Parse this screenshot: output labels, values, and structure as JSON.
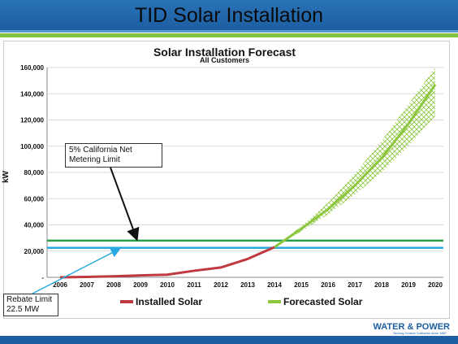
{
  "slide": {
    "title": "TID Solar Installation",
    "logo_text": "WATER & POWER",
    "logo_tagline": "Serving Central California since 1887"
  },
  "colors": {
    "header_bg": "#1c5ea1",
    "accent_green": "#7ec240",
    "installed": "#c0393f",
    "forecast": "#8dc63f",
    "net_metering_line": "#2aa04a",
    "rebate_line": "#29a9e0"
  },
  "chart_data": {
    "type": "line",
    "title": "Solar Installation Forecast",
    "subtitle": "All Customers",
    "xlabel": "",
    "ylabel": "kW",
    "x": [
      2006,
      2007,
      2008,
      2009,
      2010,
      2011,
      2012,
      2013,
      2014,
      2015,
      2016,
      2017,
      2018,
      2019,
      2020
    ],
    "ylim": [
      0,
      160000
    ],
    "yticks": [
      {
        "value": 0,
        "label": "-"
      },
      {
        "value": 20000,
        "label": "20,000"
      },
      {
        "value": 40000,
        "label": "40,000"
      },
      {
        "value": 60000,
        "label": "60,000"
      },
      {
        "value": 80000,
        "label": "80,000"
      },
      {
        "value": 100000,
        "label": "100,000"
      },
      {
        "value": 120000,
        "label": "120,000"
      },
      {
        "value": 140000,
        "label": "140,000"
      },
      {
        "value": 160000,
        "label": "160,000"
      }
    ],
    "grid": true,
    "series": [
      {
        "name": "Installed Solar",
        "x": [
          2006,
          2007,
          2008,
          2009,
          2010,
          2011,
          2012,
          2013,
          2014
        ],
        "values": [
          0,
          300,
          800,
          1500,
          2000,
          5000,
          7500,
          14000,
          23000
        ]
      },
      {
        "name": "Forecasted Solar",
        "x": [
          2014,
          2015,
          2016,
          2017,
          2018,
          2019,
          2020
        ],
        "values": [
          23000,
          37000,
          52000,
          70000,
          91000,
          117000,
          147000
        ],
        "range_low": [
          23000,
          35000,
          48000,
          63000,
          80000,
          100000,
          123000
        ],
        "range_high": [
          23000,
          39000,
          57000,
          79000,
          104000,
          132000,
          166000
        ]
      }
    ],
    "reference_lines": [
      {
        "value": 28000,
        "label": "5% California Net Metering Limit",
        "color": "#2aa04a"
      },
      {
        "value": 22500,
        "label": "Rebate Limit 22.5 MW",
        "color": "#29a9e0"
      }
    ],
    "annotations": {
      "net_metering_line1": "5% California Net",
      "net_metering_line2": "Metering Limit",
      "rebate_line1": "Rebate Limit",
      "rebate_line2": "22.5 MW"
    },
    "legend_position": "bottom"
  }
}
